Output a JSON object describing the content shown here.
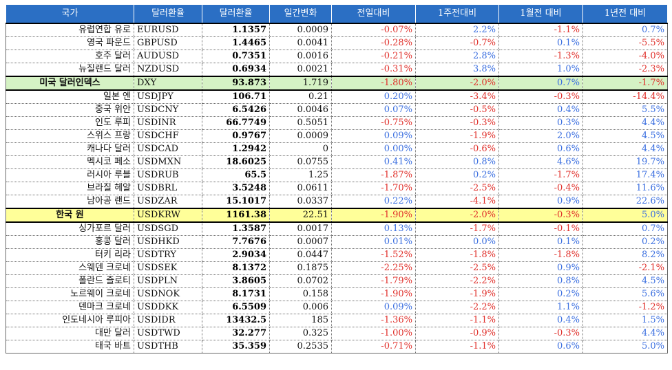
{
  "table": {
    "headers": [
      "국가",
      "달러환율",
      "달러환율",
      "일간변화",
      "전일대비",
      "1주전대비",
      "1월전 대비",
      "1년전 대비"
    ],
    "rows": [
      {
        "country": "유럽연합 유로",
        "code": "EURUSD",
        "rate": "1.1357",
        "change": "0.0009",
        "d1": "-0.07%",
        "w1": "2.2%",
        "m1": "-1.1%",
        "y1": "0.7%"
      },
      {
        "country": "영국 파운드",
        "code": "GBPUSD",
        "rate": "1.4465",
        "change": "0.0041",
        "d1": "-0.28%",
        "w1": "-0.7%",
        "m1": "0.1%",
        "y1": "-5.5%"
      },
      {
        "country": "호주 달러",
        "code": "AUDUSD",
        "rate": "0.7351",
        "change": "0.0016",
        "d1": "-0.21%",
        "w1": "2.8%",
        "m1": "-1.3%",
        "y1": "-4.0%"
      },
      {
        "country": "뉴질랜드 달러",
        "code": "NZDUSD",
        "rate": "0.6934",
        "change": "0.0021",
        "d1": "-0.31%",
        "w1": "3.8%",
        "m1": "1.0%",
        "y1": "-2.3%"
      },
      {
        "country": "미국 달러인덱스",
        "code": "DXY",
        "rate": "93.873",
        "change": "1.719",
        "d1": "-1.80%",
        "w1": "-2.0%",
        "m1": "0.7%",
        "y1": "-1.7%",
        "highlight": "green"
      },
      {
        "country": "일본 엔",
        "code": "USDJPY",
        "rate": "106.71",
        "change": "0.21",
        "d1": "0.20%",
        "w1": "-3.4%",
        "m1": "-0.3%",
        "y1": "-14.4%"
      },
      {
        "country": "중국 위안",
        "code": "USDCNY",
        "rate": "6.5426",
        "change": "0.0046",
        "d1": "0.07%",
        "w1": "-0.5%",
        "m1": "0.4%",
        "y1": "5.5%"
      },
      {
        "country": "인도 루피",
        "code": "USDINR",
        "rate": "66.7749",
        "change": "0.5051",
        "d1": "-0.75%",
        "w1": "-0.3%",
        "m1": "0.3%",
        "y1": "4.4%"
      },
      {
        "country": "스위스 프랑",
        "code": "USDCHF",
        "rate": "0.9767",
        "change": "0.0009",
        "d1": "0.09%",
        "w1": "-1.9%",
        "m1": "2.0%",
        "y1": "4.5%"
      },
      {
        "country": "캐나다 달러",
        "code": "USDCAD",
        "rate": "1.2942",
        "change": "0",
        "d1": "0.00%",
        "w1": "-0.6%",
        "m1": "0.6%",
        "y1": "4.4%"
      },
      {
        "country": "멕시코 페소",
        "code": "USDMXN",
        "rate": "18.6025",
        "change": "0.0755",
        "d1": "0.41%",
        "w1": "0.8%",
        "m1": "4.6%",
        "y1": "19.7%"
      },
      {
        "country": "러시아 루블",
        "code": "USDRUB",
        "rate": "65.5",
        "change": "1.25",
        "d1": "-1.87%",
        "w1": "0.2%",
        "m1": "-1.7%",
        "y1": "17.4%"
      },
      {
        "country": "브라질 헤알",
        "code": "USDBRL",
        "rate": "3.5248",
        "change": "0.0611",
        "d1": "-1.70%",
        "w1": "-2.5%",
        "m1": "-0.4%",
        "y1": "11.6%"
      },
      {
        "country": "남아공 랜드",
        "code": "USDZAR",
        "rate": "15.1017",
        "change": "0.0337",
        "d1": "0.22%",
        "w1": "-4.1%",
        "m1": "0.9%",
        "y1": "22.6%"
      },
      {
        "country": "한국 원",
        "code": "USDKRW",
        "rate": "1161.38",
        "change": "22.51",
        "d1": "-1.90%",
        "w1": "-2.0%",
        "m1": "-0.3%",
        "y1": "5.0%",
        "highlight": "yellow"
      },
      {
        "country": "싱가포르 달러",
        "code": "USDSGD",
        "rate": "1.3587",
        "change": "0.0017",
        "d1": "0.13%",
        "w1": "-1.7%",
        "m1": "-0.1%",
        "y1": "0.7%"
      },
      {
        "country": "홍콩 달러",
        "code": "USDHKD",
        "rate": "7.7676",
        "change": "0.0007",
        "d1": "0.01%",
        "w1": "0.0%",
        "m1": "0.1%",
        "y1": "0.2%"
      },
      {
        "country": "터키 리라",
        "code": "USDTRY",
        "rate": "2.9034",
        "change": "0.0447",
        "d1": "-1.52%",
        "w1": "-1.8%",
        "m1": "-1.8%",
        "y1": "8.2%"
      },
      {
        "country": "스웨덴 크로네",
        "code": "USDSEK",
        "rate": "8.1372",
        "change": "0.1875",
        "d1": "-2.25%",
        "w1": "-2.5%",
        "m1": "0.9%",
        "y1": "-2.1%"
      },
      {
        "country": "폴란드 즐로티",
        "code": "USDPLN",
        "rate": "3.8605",
        "change": "0.0702",
        "d1": "-1.79%",
        "w1": "-2.2%",
        "m1": "0.8%",
        "y1": "4.5%"
      },
      {
        "country": "노르웨이 크로네",
        "code": "USDNOK",
        "rate": "8.1731",
        "change": "0.158",
        "d1": "-1.90%",
        "w1": "-1.9%",
        "m1": "0.2%",
        "y1": "5.6%"
      },
      {
        "country": "덴마크 크로네",
        "code": "USDDKK",
        "rate": "6.5509",
        "change": "0.006",
        "d1": "0.09%",
        "w1": "-2.2%",
        "m1": "1.1%",
        "y1": "-1.2%"
      },
      {
        "country": "인도네시아 루피아",
        "code": "USDIDR",
        "rate": "13432.5",
        "change": "185",
        "d1": "-1.36%",
        "w1": "-1.1%",
        "m1": "0.4%",
        "y1": "1.5%"
      },
      {
        "country": "대만 달러",
        "code": "USDTWD",
        "rate": "32.277",
        "change": "0.325",
        "d1": "-1.00%",
        "w1": "-0.9%",
        "m1": "-0.3%",
        "y1": "4.4%"
      },
      {
        "country": "태국 바트",
        "code": "USDTHB",
        "rate": "35.359",
        "change": "0.2535",
        "d1": "-0.71%",
        "w1": "-1.1%",
        "m1": "0.6%",
        "y1": "5.0%"
      }
    ]
  },
  "colors": {
    "header_bg": "#2b6fc4",
    "header_text": "#ffffff",
    "positive": "#3b6fe0",
    "negative": "#e0302b",
    "highlight_green": "#d5f2c4",
    "highlight_yellow": "#ffff99"
  }
}
